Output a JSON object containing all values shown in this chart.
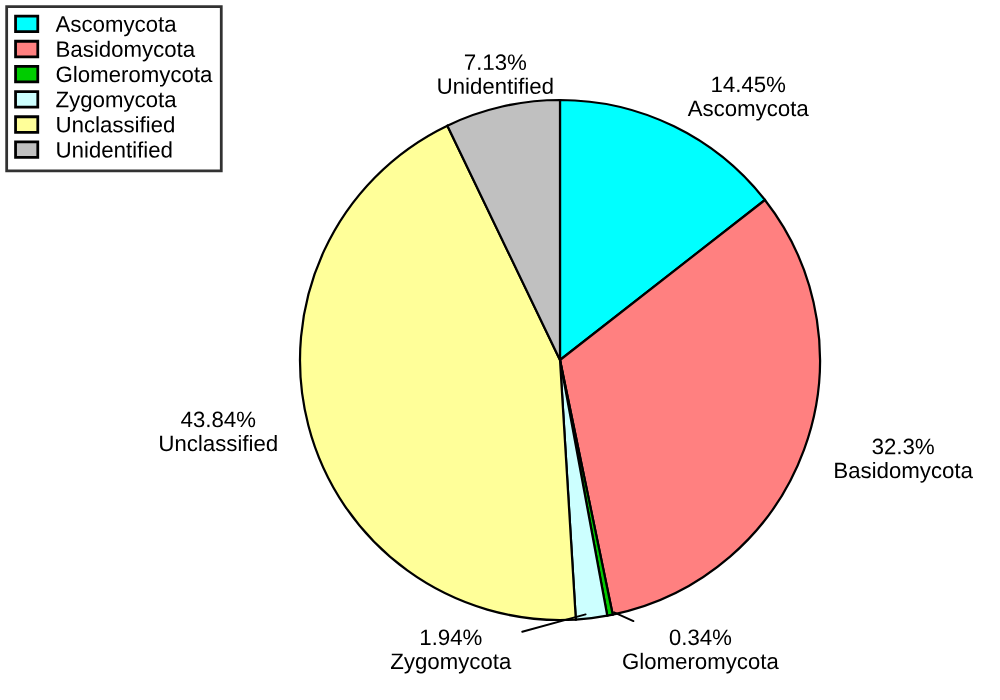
{
  "chart_data": {
    "type": "pie",
    "categories": [
      "Ascomycota",
      "Basidomycota",
      "Glomeromycota",
      "Zygomycota",
      "Unclassified",
      "Unidentified"
    ],
    "values": [
      14.45,
      32.3,
      0.34,
      1.94,
      43.84,
      7.13
    ],
    "value_labels": [
      "14.45%",
      "32.3%",
      "0.34%",
      "1.94%",
      "43.84%",
      "7.13%"
    ],
    "colors": [
      "#00ffff",
      "#ff8080",
      "#00cc00",
      "#ccffff",
      "#ffff99",
      "#c0c0c0"
    ],
    "legend": "top left"
  }
}
